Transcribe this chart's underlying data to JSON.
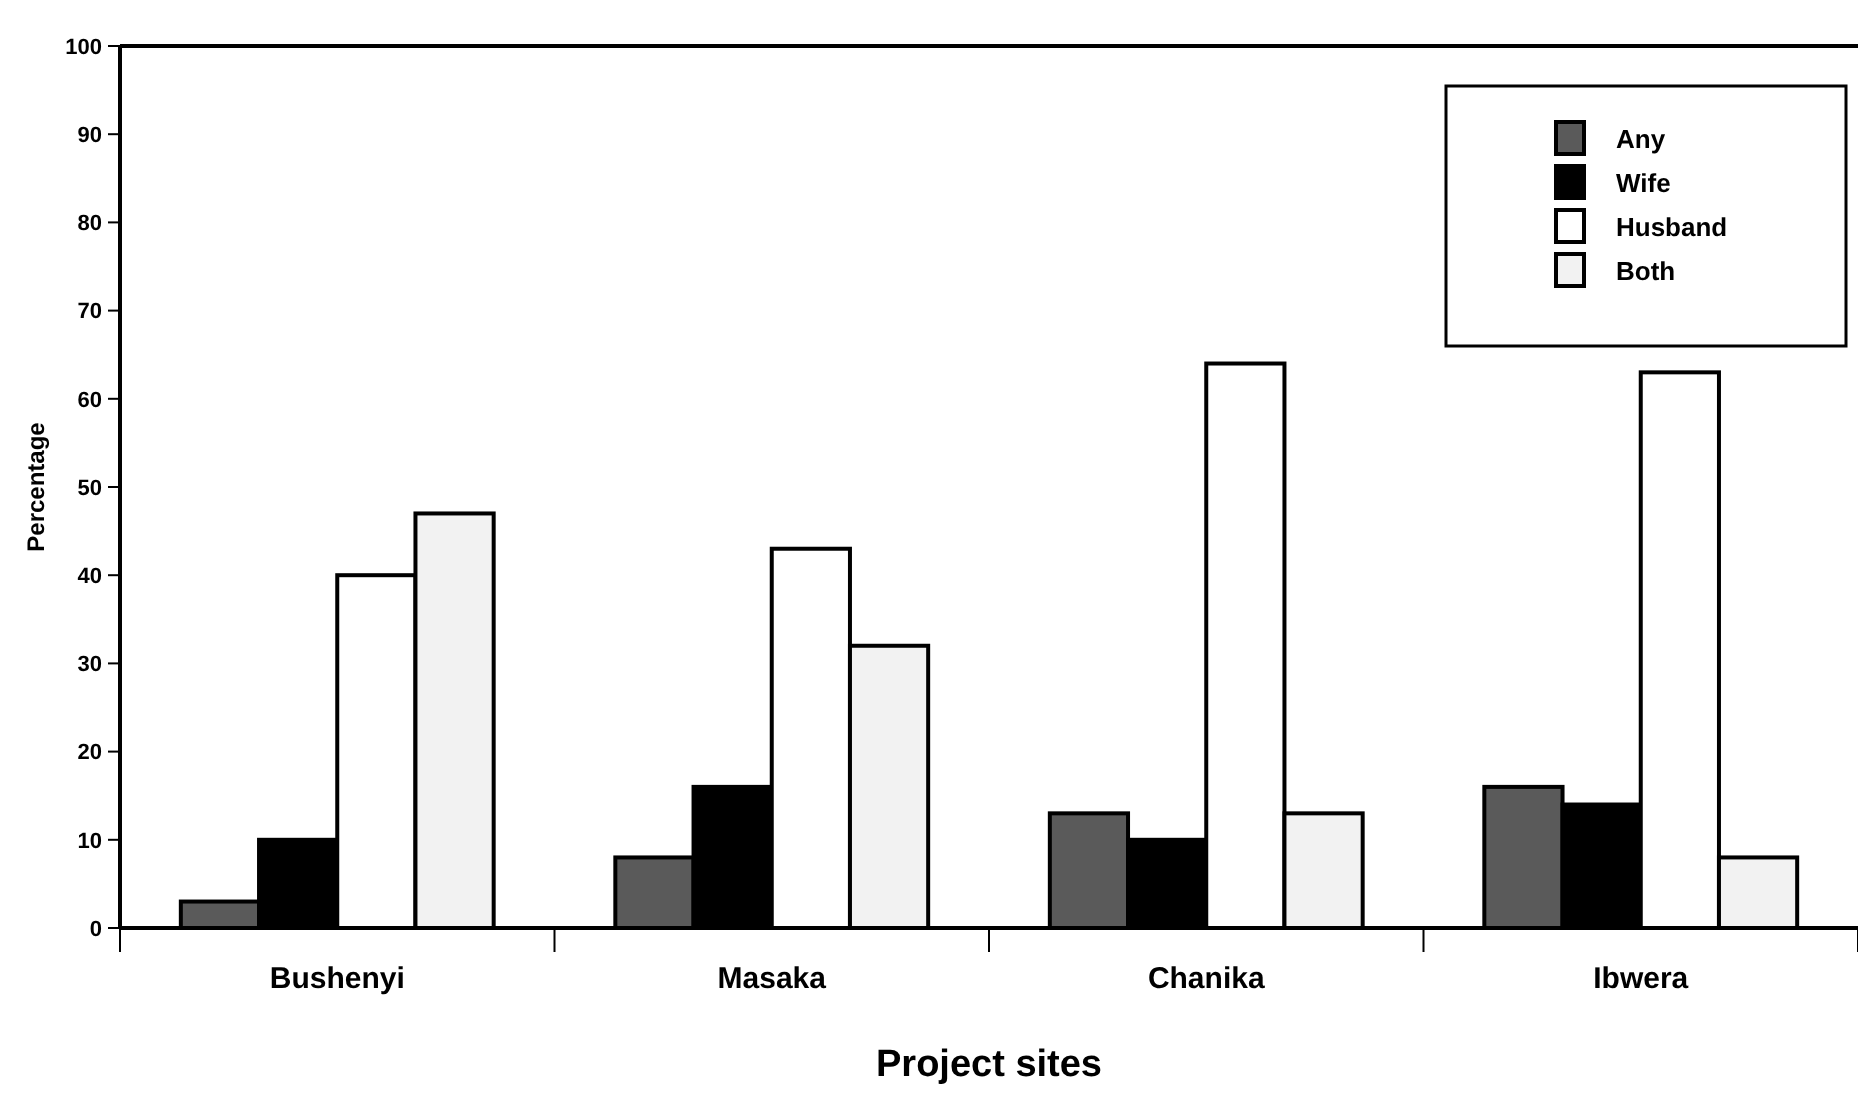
{
  "chart_data": {
    "type": "bar",
    "xlabel": "Project sites",
    "ylabel": "Percentage",
    "categories": [
      "Bushenyi",
      "Masaka",
      "Chanika",
      "Ibwera"
    ],
    "series": [
      {
        "name": "Any",
        "color": "#5a5a5a",
        "values": [
          3,
          8,
          13,
          16
        ]
      },
      {
        "name": "Wife",
        "color": "#000000",
        "values": [
          10,
          16,
          10,
          14
        ]
      },
      {
        "name": "Husband",
        "color": "#ffffff",
        "values": [
          40,
          43,
          64,
          63
        ]
      },
      {
        "name": "Both",
        "color": "#f2f2f2",
        "values": [
          47,
          32,
          13,
          8
        ]
      }
    ],
    "ylim": [
      0,
      100
    ],
    "yticks": [
      0,
      10,
      20,
      30,
      40,
      50,
      60,
      70,
      80,
      90,
      100
    ],
    "grid": false,
    "legend": "top right"
  }
}
